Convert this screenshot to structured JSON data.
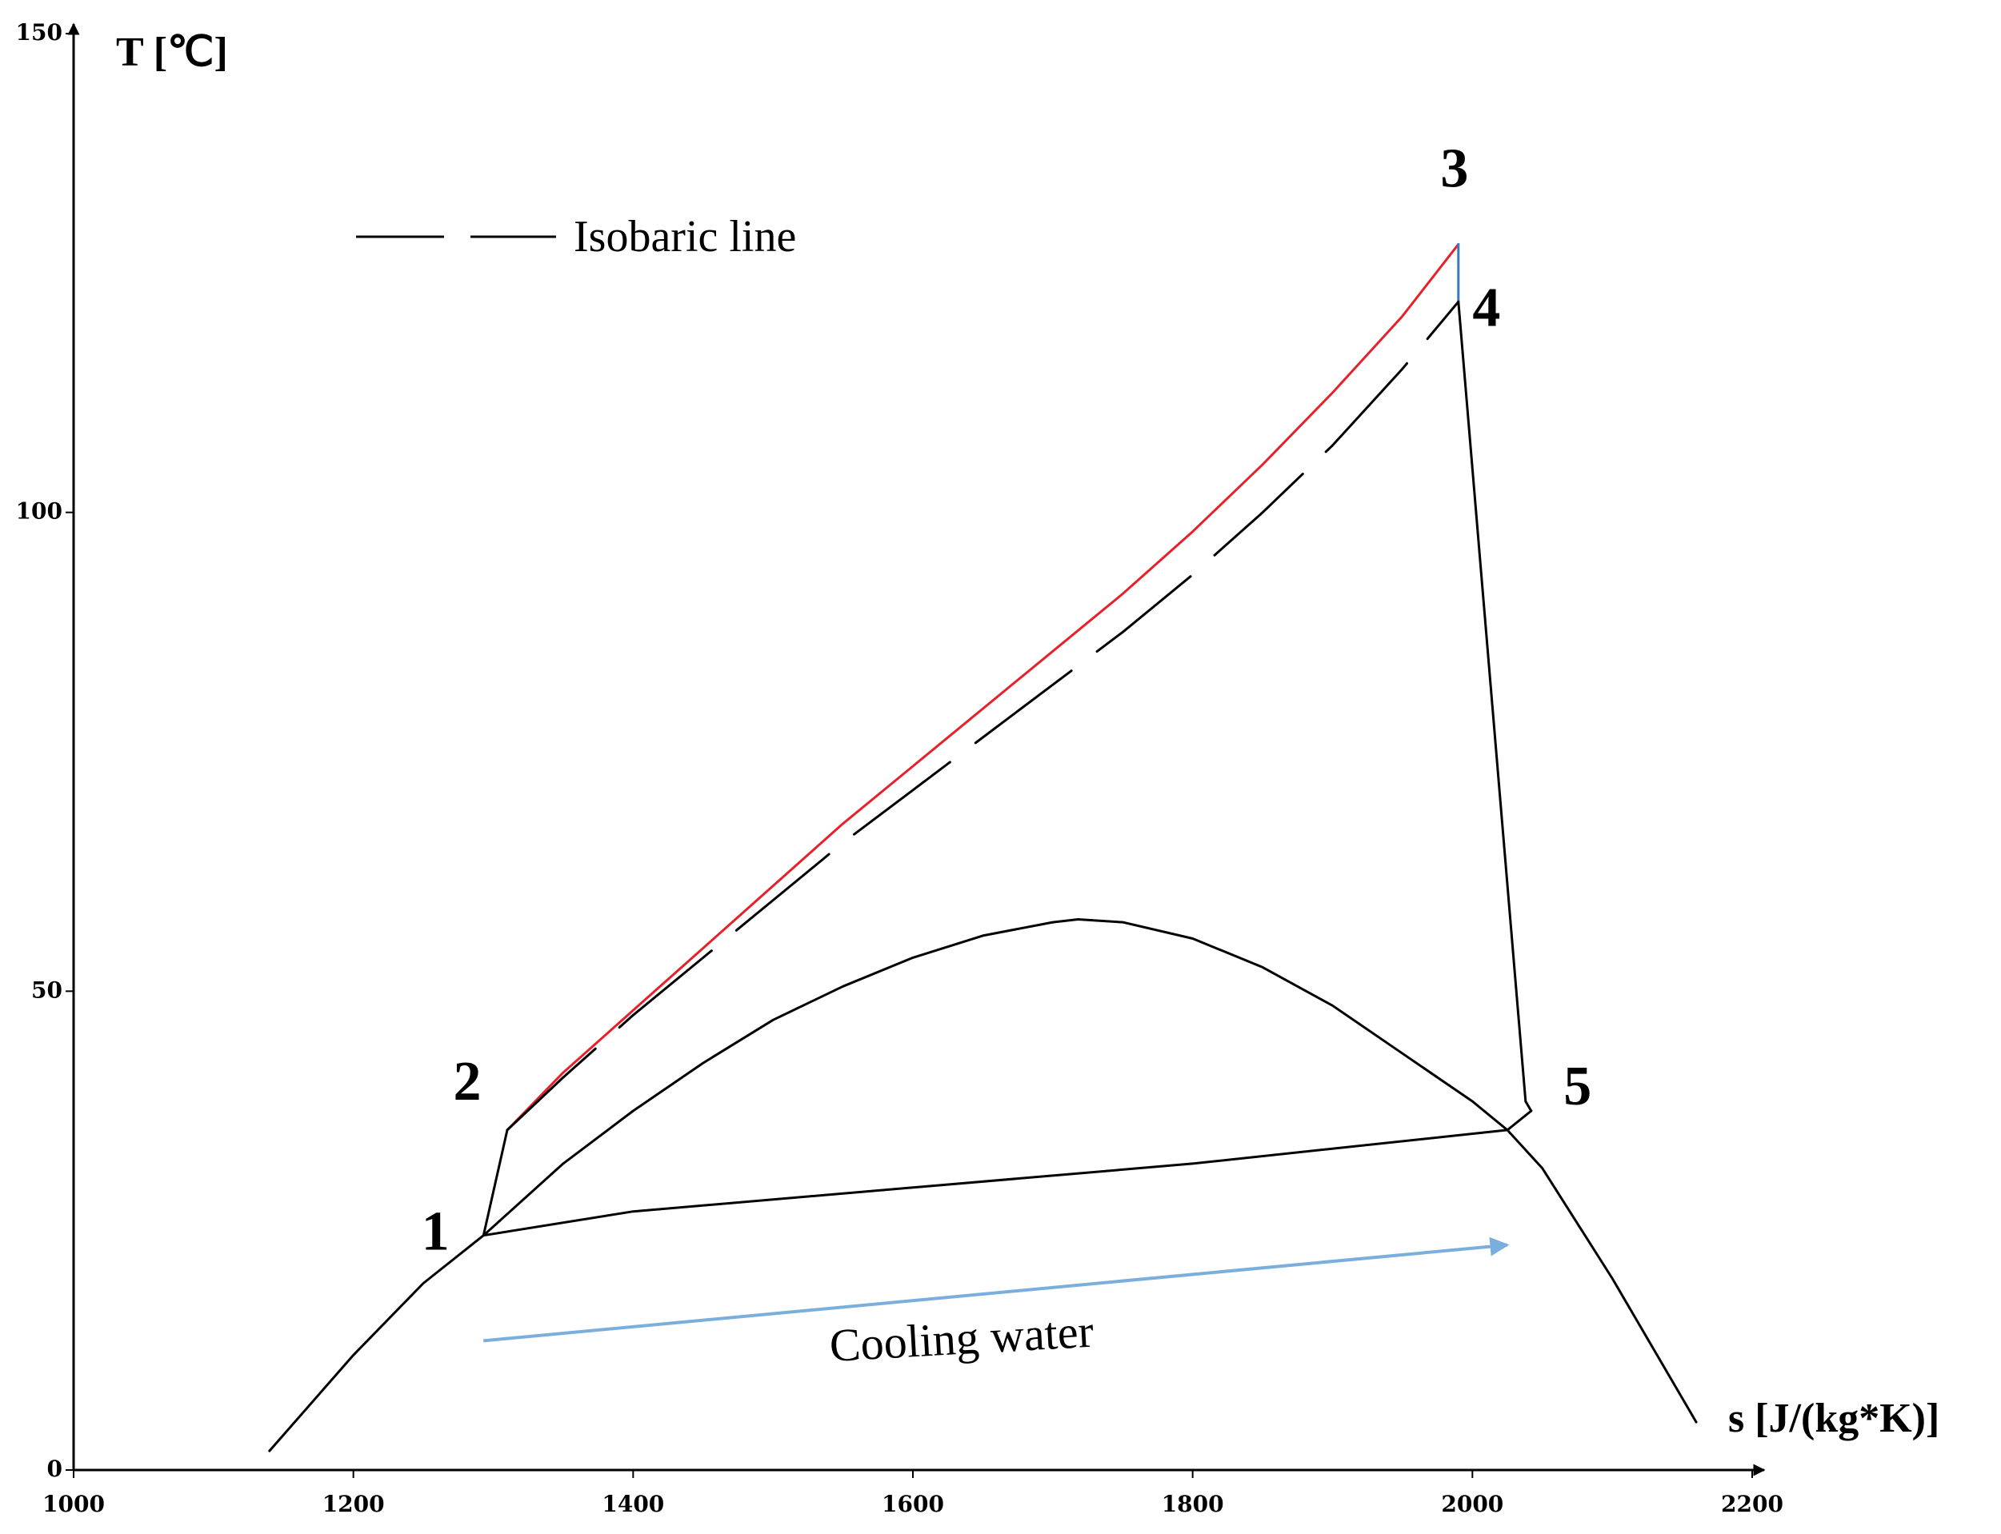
{
  "chart_data": {
    "type": "line",
    "title": "",
    "xlabel": "s [J/(kg*K)]",
    "ylabel": "T [℃]",
    "xlim": [
      1000,
      2200
    ],
    "ylim": [
      0,
      150
    ],
    "x_ticks": [
      1000,
      1200,
      1400,
      1600,
      1800,
      2000,
      2200
    ],
    "y_ticks": [
      0,
      50,
      100,
      150
    ],
    "x_tick_labels": [
      "1000",
      "1200",
      "1400",
      "1600",
      "1800",
      "2000",
      "2200"
    ],
    "y_tick_labels": [
      "0",
      "50",
      "100",
      "150"
    ],
    "grid": false,
    "legend": [
      {
        "label": "Isobaric line",
        "style": "dashed",
        "color": "#000000"
      }
    ],
    "legend_position": "top-left",
    "colors": {
      "heating": "#e8202a",
      "expansion_drop": "#3a78c2",
      "cycle": "#000000",
      "dome": "#000000",
      "isobar": "#000000",
      "cooling_water": "#7aaedc"
    },
    "points": [
      {
        "label": "1",
        "s": 1293,
        "T": 24.5
      },
      {
        "label": "2",
        "s": 1310,
        "T": 35.5
      },
      {
        "label": "3",
        "s": 1990,
        "T": 128
      },
      {
        "label": "4",
        "s": 1990,
        "T": 122
      },
      {
        "label": "5",
        "s": 2042,
        "T": 37.5
      }
    ],
    "series": [
      {
        "name": "saturation-dome",
        "style": "solid",
        "color": "#000000",
        "s": [
          1140,
          1200,
          1250,
          1293,
          1350,
          1400,
          1450,
          1500,
          1550,
          1600,
          1650,
          1700,
          1718,
          1750,
          1800,
          1850,
          1900,
          1950,
          2000,
          2025,
          2050,
          2100,
          2160
        ],
        "T": [
          2,
          12,
          19.5,
          24.5,
          32,
          37.5,
          42.5,
          47,
          50.5,
          53.5,
          55.8,
          57.2,
          57.5,
          57.2,
          55.5,
          52.5,
          48.5,
          43.5,
          38.5,
          35.5,
          31.5,
          20,
          5
        ]
      },
      {
        "name": "process-1-2",
        "style": "solid",
        "color": "#000000",
        "s": [
          1293,
          1310
        ],
        "T": [
          24.5,
          35.5
        ]
      },
      {
        "name": "heating-2-3",
        "style": "solid",
        "color": "#e8202a",
        "s": [
          1310,
          1350,
          1400,
          1450,
          1500,
          1550,
          1600,
          1650,
          1700,
          1750,
          1800,
          1850,
          1900,
          1950,
          1990
        ],
        "T": [
          35.5,
          41.5,
          48,
          54.5,
          61,
          67.5,
          73.5,
          79.5,
          85.5,
          91.5,
          98,
          105,
          112.5,
          120.5,
          128
        ]
      },
      {
        "name": "drop-3-4",
        "style": "solid",
        "color": "#3a78c2",
        "s": [
          1990,
          1990
        ],
        "T": [
          128,
          122
        ]
      },
      {
        "name": "expansion-4-5",
        "style": "solid",
        "color": "#000000",
        "s": [
          1990,
          2038,
          2042
        ],
        "T": [
          122,
          38.5,
          37.5
        ]
      },
      {
        "name": "condensation-5-1",
        "style": "solid",
        "color": "#000000",
        "s": [
          2042,
          2025,
          1800,
          1600,
          1400,
          1293
        ],
        "T": [
          37.5,
          35.5,
          32,
          29.5,
          27,
          24.5
        ]
      },
      {
        "name": "Isobaric line",
        "style": "dashed",
        "color": "#000000",
        "s": [
          1310,
          1350,
          1400,
          1450,
          1500,
          1550,
          1600,
          1650,
          1700,
          1750,
          1800,
          1850,
          1900,
          1950,
          1990
        ],
        "T": [
          35.5,
          41,
          47.5,
          53.5,
          59.5,
          65.5,
          71,
          76.5,
          82,
          87.5,
          93.5,
          100,
          107,
          115,
          122
        ]
      },
      {
        "name": "cooling-water",
        "style": "arrow",
        "color": "#7aaedc",
        "s": [
          1293,
          2025
        ],
        "T": [
          13.5,
          23.5
        ]
      }
    ],
    "annotations": [
      {
        "text": "Cooling water",
        "s": 1640,
        "T": 16
      }
    ]
  }
}
